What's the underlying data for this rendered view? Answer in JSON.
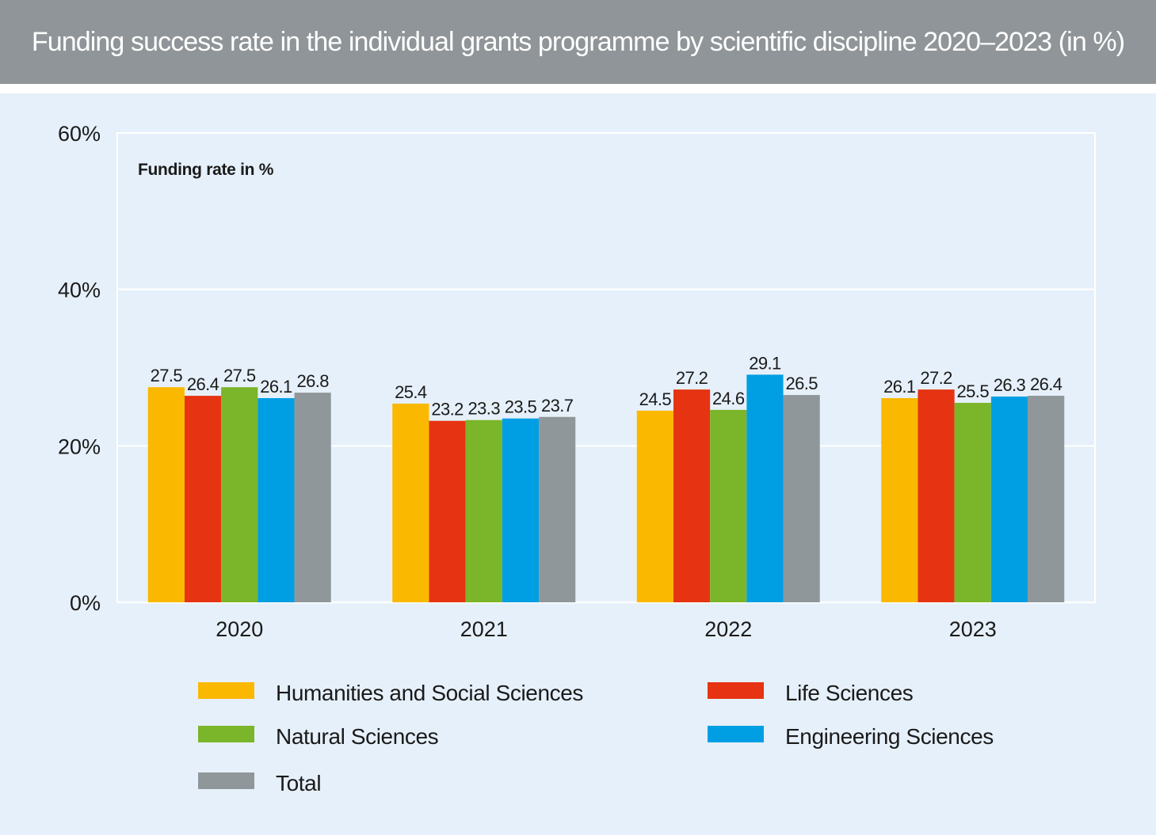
{
  "title": "Funding success rate in the individual grants programme by scientific discipline 2020–2023 (in %)",
  "chart_data": {
    "type": "bar",
    "inner_label": "Funding rate in %",
    "categories": [
      "2020",
      "2021",
      "2022",
      "2023"
    ],
    "ylim": [
      0,
      60
    ],
    "yticks": [
      0,
      20,
      40,
      60
    ],
    "ytick_labels": [
      "0%",
      "20%",
      "40%",
      "60%"
    ],
    "grid": true,
    "legend_position": "bottom",
    "series": [
      {
        "name": "Humanities and Social Sciences",
        "color": "#fbb800",
        "values": [
          27.5,
          25.4,
          24.5,
          26.1
        ],
        "labels": [
          "27.5",
          "25.4",
          "24.5",
          "26.1"
        ]
      },
      {
        "name": "Life Sciences",
        "color": "#e63312",
        "values": [
          26.4,
          23.2,
          27.2,
          27.2
        ],
        "labels": [
          "26.4",
          "23.2",
          "27.2",
          "27.2"
        ]
      },
      {
        "name": "Natural Sciences",
        "color": "#7ab52a",
        "values": [
          27.5,
          23.3,
          24.6,
          25.5
        ],
        "labels": [
          "27.5",
          "23.3",
          "24.6",
          "25.5"
        ]
      },
      {
        "name": "Engineering Sciences",
        "color": "#009fe3",
        "values": [
          26.1,
          23.5,
          29.1,
          26.3
        ],
        "labels": [
          "26.1",
          "23.5",
          "29.1",
          "26.3"
        ]
      },
      {
        "name": "Total",
        "color": "#90979a",
        "values": [
          26.8,
          23.7,
          26.5,
          26.4
        ],
        "labels": [
          "26.8",
          "23.7",
          "26.5",
          "26.4"
        ]
      }
    ]
  }
}
